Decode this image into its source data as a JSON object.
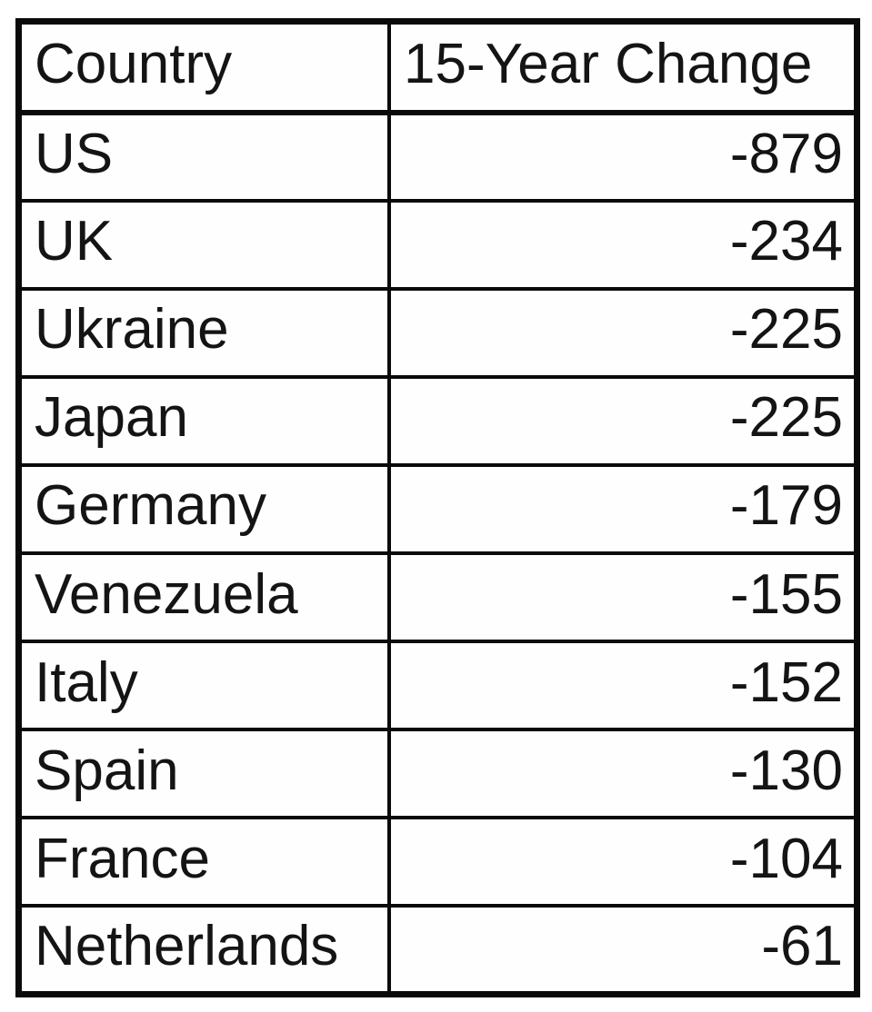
{
  "table": {
    "columns": [
      "Country",
      "15-Year Change"
    ],
    "rows": [
      {
        "country": "US",
        "change": "-879"
      },
      {
        "country": "UK",
        "change": "-234"
      },
      {
        "country": "Ukraine",
        "change": "-225"
      },
      {
        "country": "Japan",
        "change": "-225"
      },
      {
        "country": "Germany",
        "change": "-179"
      },
      {
        "country": "Venezuela",
        "change": "-155"
      },
      {
        "country": "Italy",
        "change": "-152"
      },
      {
        "country": "Spain",
        "change": "-130"
      },
      {
        "country": "France",
        "change": "-104"
      },
      {
        "country": "Netherlands",
        "change": "-61"
      }
    ]
  },
  "chart_data": {
    "type": "table",
    "title": "",
    "columns": [
      "Country",
      "15-Year Change"
    ],
    "rows": [
      [
        "US",
        -879
      ],
      [
        "UK",
        -234
      ],
      [
        "Ukraine",
        -225
      ],
      [
        "Japan",
        -225
      ],
      [
        "Germany",
        -179
      ],
      [
        "Venezuela",
        -155
      ],
      [
        "Italy",
        -152
      ],
      [
        "Spain",
        -130
      ],
      [
        "France",
        -104
      ],
      [
        "Netherlands",
        -61
      ]
    ],
    "layout": {
      "header_align": "left",
      "country_align": "left",
      "value_align": "right",
      "grid": "on"
    }
  },
  "colors": {
    "border": "#0a0a0a",
    "text": "#141414",
    "background": "#ffffff"
  }
}
